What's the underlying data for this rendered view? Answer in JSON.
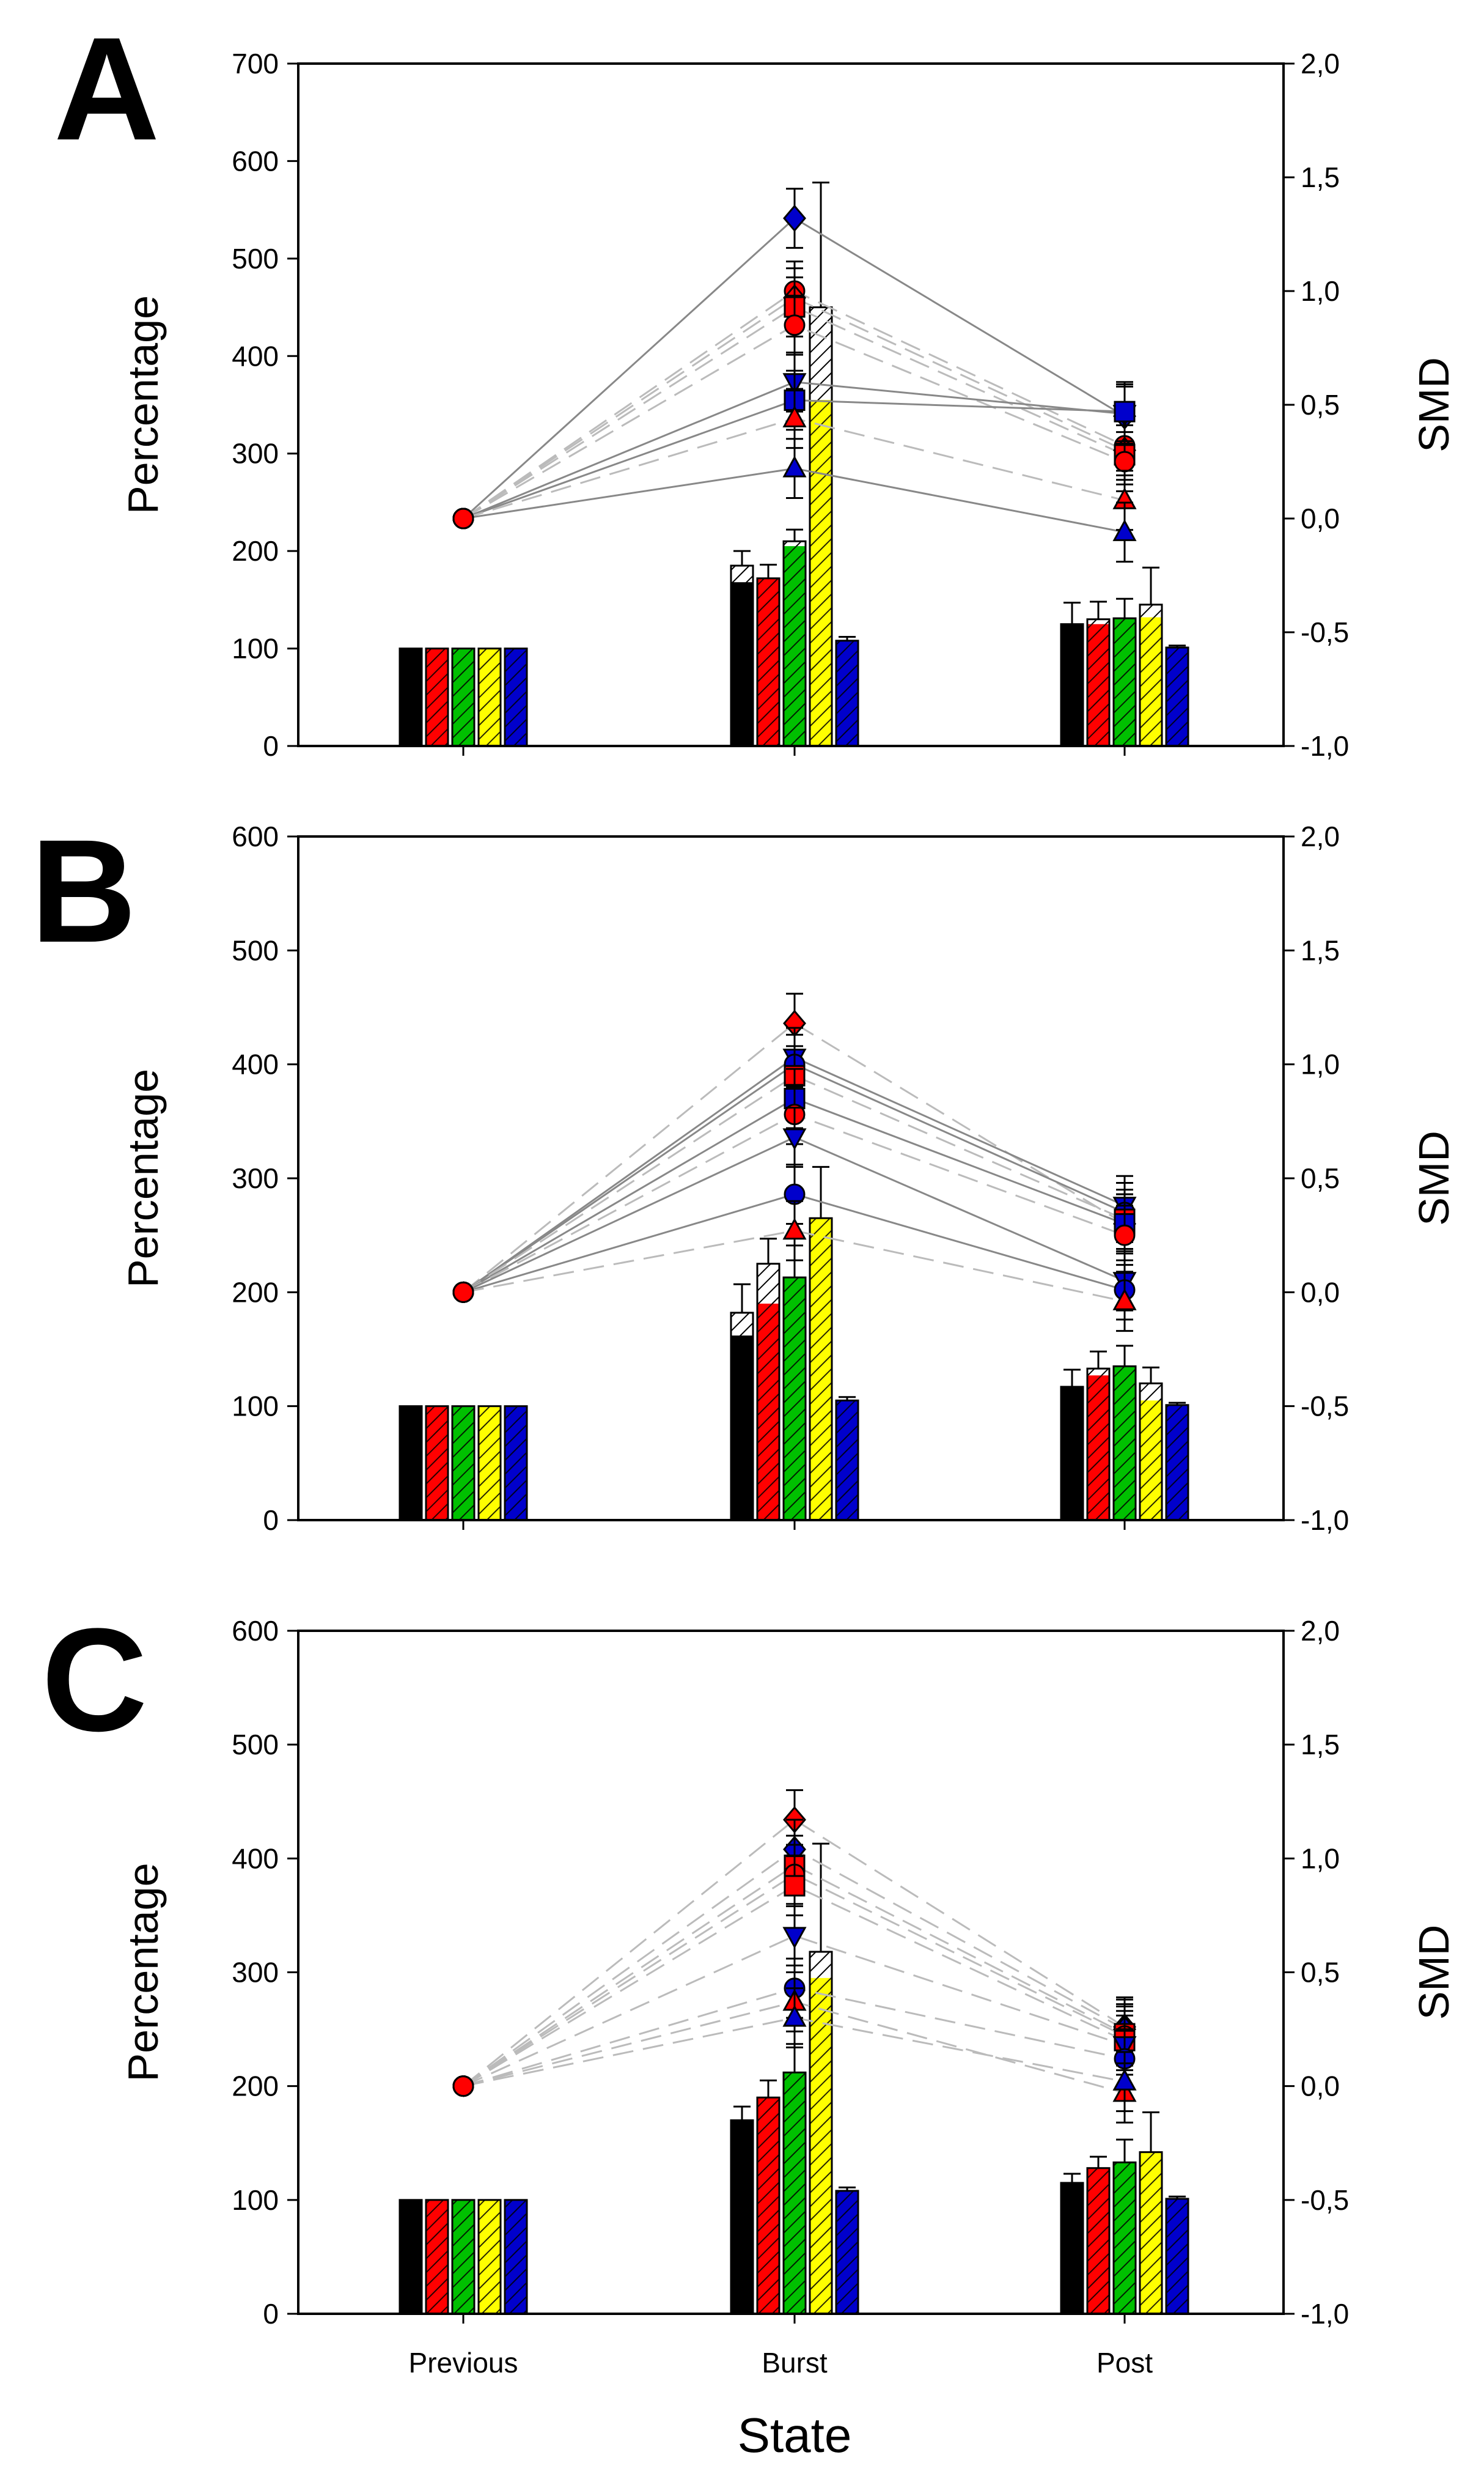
{
  "figure": {
    "x_title": "State",
    "x_categories": [
      "Previous",
      "Burst",
      "Post"
    ]
  },
  "legend_colors": {
    "black": "#000000",
    "red": "#ff0000",
    "green": "#00c000",
    "yellow": "#ffff00",
    "blue": "#0000cc",
    "line": "#888888",
    "dash": "#bbbbbb"
  },
  "chart_data": [
    {
      "type": "bar",
      "panel": "A",
      "ylabel": "Percentage",
      "y2label": "SMD",
      "ylim": [
        0,
        700
      ],
      "y2lim": [
        -1.0,
        2.0
      ],
      "yticks": [
        "0",
        "100",
        "200",
        "300",
        "400",
        "500",
        "600",
        "700"
      ],
      "y2ticks": [
        "-1,0",
        "-0,5",
        "0,0",
        "0,5",
        "1,0",
        "1,5",
        "2,0"
      ],
      "categories": [
        "Previous",
        "Burst",
        "Post"
      ],
      "bar_series": [
        {
          "color": "black",
          "values": [
            100,
            185,
            125
          ],
          "solid_part": [
            100,
            168,
            125
          ],
          "err": [
            0,
            15,
            22
          ]
        },
        {
          "color": "red",
          "values": [
            100,
            172,
            130
          ],
          "solid_part": [
            100,
            172,
            125
          ],
          "err": [
            0,
            14,
            18
          ]
        },
        {
          "color": "green",
          "values": [
            100,
            210,
            131
          ],
          "solid_part": [
            100,
            205,
            131
          ],
          "err": [
            0,
            12,
            20
          ]
        },
        {
          "color": "yellow",
          "values": [
            100,
            450,
            145
          ],
          "solid_part": [
            100,
            355,
            132
          ],
          "err": [
            0,
            128,
            38
          ]
        },
        {
          "color": "blue",
          "values": [
            100,
            108,
            101
          ],
          "solid_part": [
            100,
            108,
            101
          ],
          "err": [
            0,
            4,
            2
          ]
        }
      ],
      "smd_points": [
        {
          "marker": "diamond",
          "color": "blue",
          "style": "solid",
          "values": [
            0,
            1.32,
            0.45
          ]
        },
        {
          "marker": "circle",
          "color": "red",
          "style": "dash",
          "values": [
            0,
            1.0,
            0.32
          ]
        },
        {
          "marker": "diamond",
          "color": "red",
          "style": "dash",
          "values": [
            0,
            0.97,
            0.3
          ]
        },
        {
          "marker": "square",
          "color": "red",
          "style": "dash",
          "values": [
            0,
            0.93,
            0.28
          ]
        },
        {
          "marker": "circle",
          "color": "red",
          "style": "dash",
          "values": [
            0,
            0.85,
            0.25
          ]
        },
        {
          "marker": "triangle-down",
          "color": "blue",
          "style": "solid",
          "values": [
            0,
            0.6,
            0.46
          ]
        },
        {
          "marker": "square",
          "color": "blue",
          "style": "solid",
          "values": [
            0,
            0.52,
            0.47
          ]
        },
        {
          "marker": "triangle",
          "color": "red",
          "style": "dash",
          "values": [
            0,
            0.44,
            0.08
          ]
        },
        {
          "marker": "triangle",
          "color": "blue",
          "style": "solid",
          "values": [
            0,
            0.22,
            -0.06
          ]
        }
      ]
    },
    {
      "type": "bar",
      "panel": "B",
      "ylabel": "Percentage",
      "y2label": "SMD",
      "ylim": [
        0,
        600
      ],
      "y2lim": [
        -1.0,
        2.0
      ],
      "yticks": [
        "0",
        "100",
        "200",
        "300",
        "400",
        "500",
        "600"
      ],
      "y2ticks": [
        "-1,0",
        "-0,5",
        "0,0",
        "0,5",
        "1,0",
        "1,5",
        "2,0"
      ],
      "categories": [
        "Previous",
        "Burst",
        "Post"
      ],
      "bar_series": [
        {
          "color": "black",
          "values": [
            100,
            182,
            117
          ],
          "solid_part": [
            100,
            162,
            117
          ],
          "err": [
            0,
            25,
            15
          ]
        },
        {
          "color": "red",
          "values": [
            100,
            225,
            133
          ],
          "solid_part": [
            100,
            190,
            127
          ],
          "err": [
            0,
            22,
            15
          ]
        },
        {
          "color": "green",
          "values": [
            100,
            213,
            135
          ],
          "solid_part": [
            100,
            213,
            135
          ],
          "err": [
            0,
            28,
            18
          ]
        },
        {
          "color": "yellow",
          "values": [
            100,
            265,
            120
          ],
          "solid_part": [
            100,
            265,
            105
          ],
          "err": [
            0,
            45,
            14
          ]
        },
        {
          "color": "blue",
          "values": [
            100,
            105,
            101
          ],
          "solid_part": [
            100,
            105,
            101
          ],
          "err": [
            0,
            3,
            2
          ]
        }
      ],
      "smd_points": [
        {
          "marker": "diamond",
          "color": "red",
          "style": "dash",
          "values": [
            0,
            1.18,
            0.3
          ]
        },
        {
          "marker": "triangle-down",
          "color": "blue",
          "style": "solid",
          "values": [
            0,
            1.03,
            0.38
          ]
        },
        {
          "marker": "circle",
          "color": "blue",
          "style": "solid",
          "values": [
            0,
            1.0,
            0.35
          ]
        },
        {
          "marker": "square",
          "color": "red",
          "style": "dash",
          "values": [
            0,
            0.95,
            0.32
          ]
        },
        {
          "marker": "square",
          "color": "blue",
          "style": "solid",
          "values": [
            0,
            0.85,
            0.3
          ]
        },
        {
          "marker": "circle",
          "color": "red",
          "style": "dash",
          "values": [
            0,
            0.78,
            0.25
          ]
        },
        {
          "marker": "triangle-down",
          "color": "blue",
          "style": "solid",
          "values": [
            0,
            0.68,
            0.05
          ]
        },
        {
          "marker": "circle",
          "color": "blue",
          "style": "solid",
          "values": [
            0,
            0.43,
            0.01
          ]
        },
        {
          "marker": "triangle",
          "color": "red",
          "style": "dash",
          "values": [
            0,
            0.27,
            -0.04
          ]
        }
      ]
    },
    {
      "type": "bar",
      "panel": "C",
      "ylabel": "Percentage",
      "y2label": "SMD",
      "ylim": [
        0,
        600
      ],
      "y2lim": [
        -1.0,
        2.0
      ],
      "yticks": [
        "0",
        "100",
        "200",
        "300",
        "400",
        "500",
        "600"
      ],
      "y2ticks": [
        "-1,0",
        "-0,5",
        "0,0",
        "0,5",
        "1,0",
        "1,5",
        "2,0"
      ],
      "categories": [
        "Previous",
        "Burst",
        "Post"
      ],
      "bar_series": [
        {
          "color": "black",
          "values": [
            100,
            170,
            115
          ],
          "solid_part": [
            100,
            170,
            115
          ],
          "err": [
            0,
            12,
            8
          ]
        },
        {
          "color": "red",
          "values": [
            100,
            190,
            128
          ],
          "solid_part": [
            100,
            190,
            128
          ],
          "err": [
            0,
            15,
            10
          ]
        },
        {
          "color": "green",
          "values": [
            100,
            212,
            133
          ],
          "solid_part": [
            100,
            212,
            133
          ],
          "err": [
            0,
            25,
            20
          ]
        },
        {
          "color": "yellow",
          "values": [
            100,
            318,
            142
          ],
          "solid_part": [
            100,
            295,
            142
          ],
          "err": [
            0,
            95,
            35
          ]
        },
        {
          "color": "blue",
          "values": [
            100,
            108,
            101
          ],
          "solid_part": [
            100,
            108,
            101
          ],
          "err": [
            0,
            3,
            2
          ]
        }
      ],
      "smd_points": [
        {
          "marker": "diamond",
          "color": "red",
          "style": "dash",
          "values": [
            0,
            1.17,
            0.26
          ]
        },
        {
          "marker": "diamond",
          "color": "blue",
          "style": "dash",
          "values": [
            0,
            1.04,
            0.25
          ]
        },
        {
          "marker": "square",
          "color": "red",
          "style": "dash",
          "values": [
            0,
            0.97,
            0.23
          ]
        },
        {
          "marker": "circle",
          "color": "red",
          "style": "dash",
          "values": [
            0,
            0.93,
            0.22
          ]
        },
        {
          "marker": "square",
          "color": "red",
          "style": "dash",
          "values": [
            0,
            0.88,
            0.2
          ]
        },
        {
          "marker": "triangle-down",
          "color": "blue",
          "style": "dash",
          "values": [
            0,
            0.66,
            0.18
          ]
        },
        {
          "marker": "circle",
          "color": "blue",
          "style": "dash",
          "values": [
            0,
            0.43,
            0.12
          ]
        },
        {
          "marker": "triangle",
          "color": "red",
          "style": "dash",
          "values": [
            0,
            0.37,
            -0.03
          ]
        },
        {
          "marker": "triangle",
          "color": "blue",
          "style": "dash",
          "values": [
            0,
            0.3,
            0.02
          ]
        }
      ]
    }
  ]
}
